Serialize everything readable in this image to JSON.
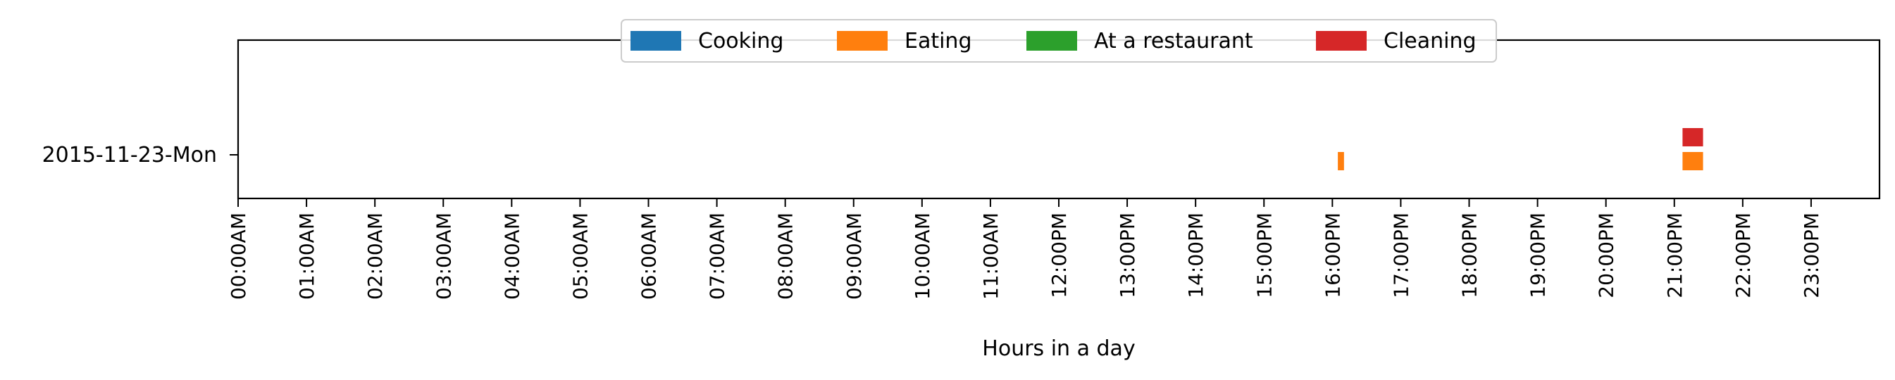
{
  "chart_data": {
    "type": "timeline",
    "xlabel": "Hours in a day",
    "xlim_hours": [
      0,
      24
    ],
    "x_ticks": [
      "00:00AM",
      "01:00AM",
      "02:00AM",
      "03:00AM",
      "04:00AM",
      "05:00AM",
      "06:00AM",
      "07:00AM",
      "08:00AM",
      "09:00AM",
      "10:00AM",
      "11:00AM",
      "12:00PM",
      "13:00PM",
      "14:00PM",
      "15:00PM",
      "16:00PM",
      "17:00PM",
      "18:00PM",
      "19:00PM",
      "20:00PM",
      "21:00PM",
      "22:00PM",
      "23:00PM"
    ],
    "categories": [
      "2015-11-23-Mon"
    ],
    "legend": {
      "placement": "top-center",
      "entries": [
        {
          "name": "Cooking",
          "color": "#1f77b4"
        },
        {
          "name": "Eating",
          "color": "#ff7f0e"
        },
        {
          "name": "At a restaurant",
          "color": "#2ca02c"
        },
        {
          "name": "Cleaning",
          "color": "#d62728"
        }
      ]
    },
    "series": [
      {
        "name": "Cooking",
        "color": "#1f77b4",
        "events": []
      },
      {
        "name": "Eating",
        "color": "#ff7f0e",
        "events": [
          {
            "day": "2015-11-23-Mon",
            "start": 16.08,
            "end": 16.17
          },
          {
            "day": "2015-11-23-Mon",
            "start": 21.12,
            "end": 21.42
          }
        ]
      },
      {
        "name": "At a restaurant",
        "color": "#2ca02c",
        "events": []
      },
      {
        "name": "Cleaning",
        "color": "#d62728",
        "events": [
          {
            "day": "2015-11-23-Mon",
            "start": 21.12,
            "end": 21.42
          }
        ]
      }
    ]
  }
}
